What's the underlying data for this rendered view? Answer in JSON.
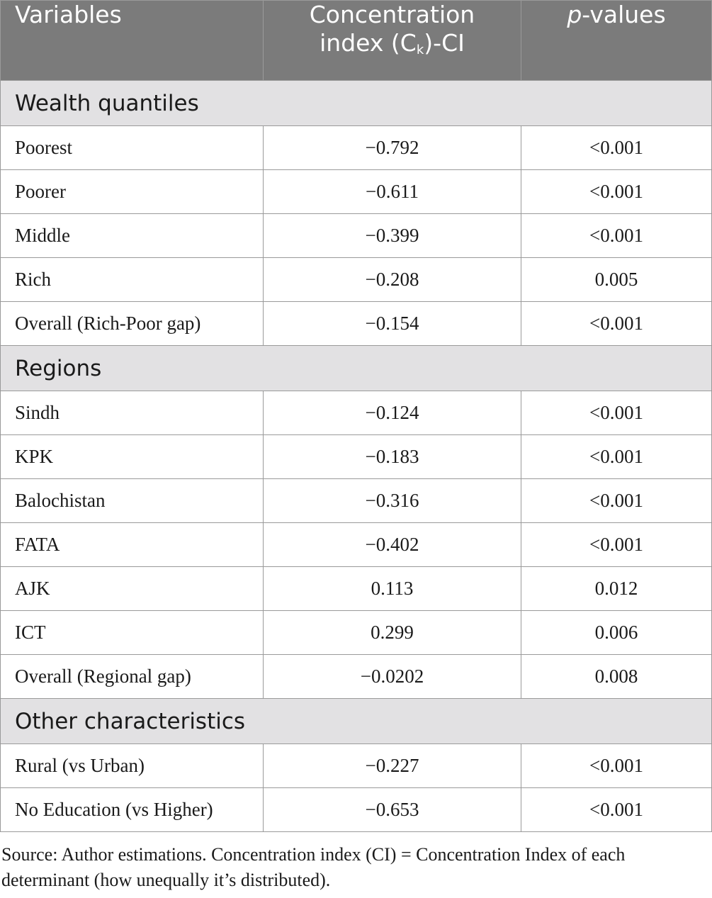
{
  "header": {
    "variables": "Variables",
    "ci_line1": "Concentration",
    "ci_line2_pre": "index (C",
    "ci_sub": "k",
    "ci_line2_post": ")-CI",
    "p_italic": "p",
    "p_rest": "-values"
  },
  "sections": [
    {
      "title": "Wealth quantiles",
      "rows": [
        {
          "variable": "Poorest",
          "ci": "−0.792",
          "p": "<0.001"
        },
        {
          "variable": "Poorer",
          "ci": "−0.611",
          "p": "<0.001"
        },
        {
          "variable": "Middle",
          "ci": "−0.399",
          "p": "<0.001"
        },
        {
          "variable": "Rich",
          "ci": "−0.208",
          "p": "0.005"
        },
        {
          "variable": "Overall (Rich-Poor gap)",
          "ci": "−0.154",
          "p": "<0.001"
        }
      ]
    },
    {
      "title": "Regions",
      "rows": [
        {
          "variable": "Sindh",
          "ci": "−0.124",
          "p": "<0.001"
        },
        {
          "variable": "KPK",
          "ci": "−0.183",
          "p": "<0.001"
        },
        {
          "variable": "Balochistan",
          "ci": "−0.316",
          "p": "<0.001"
        },
        {
          "variable": "FATA",
          "ci": "−0.402",
          "p": "<0.001"
        },
        {
          "variable": "AJK",
          "ci": "0.113",
          "p": "0.012"
        },
        {
          "variable": "ICT",
          "ci": "0.299",
          "p": "0.006"
        },
        {
          "variable": "Overall (Regional gap)",
          "ci": "−0.0202",
          "p": "0.008"
        }
      ]
    },
    {
      "title": "Other characteristics",
      "rows": [
        {
          "variable": "Rural (vs Urban)",
          "ci": "−0.227",
          "p": "<0.001"
        },
        {
          "variable": "No Education (vs Higher)",
          "ci": "−0.653",
          "p": "<0.001"
        }
      ]
    }
  ],
  "footnote": "Source: Author estimations. Concentration index (CI) = Concentration Index of each determinant (how unequally it’s distributed)."
}
